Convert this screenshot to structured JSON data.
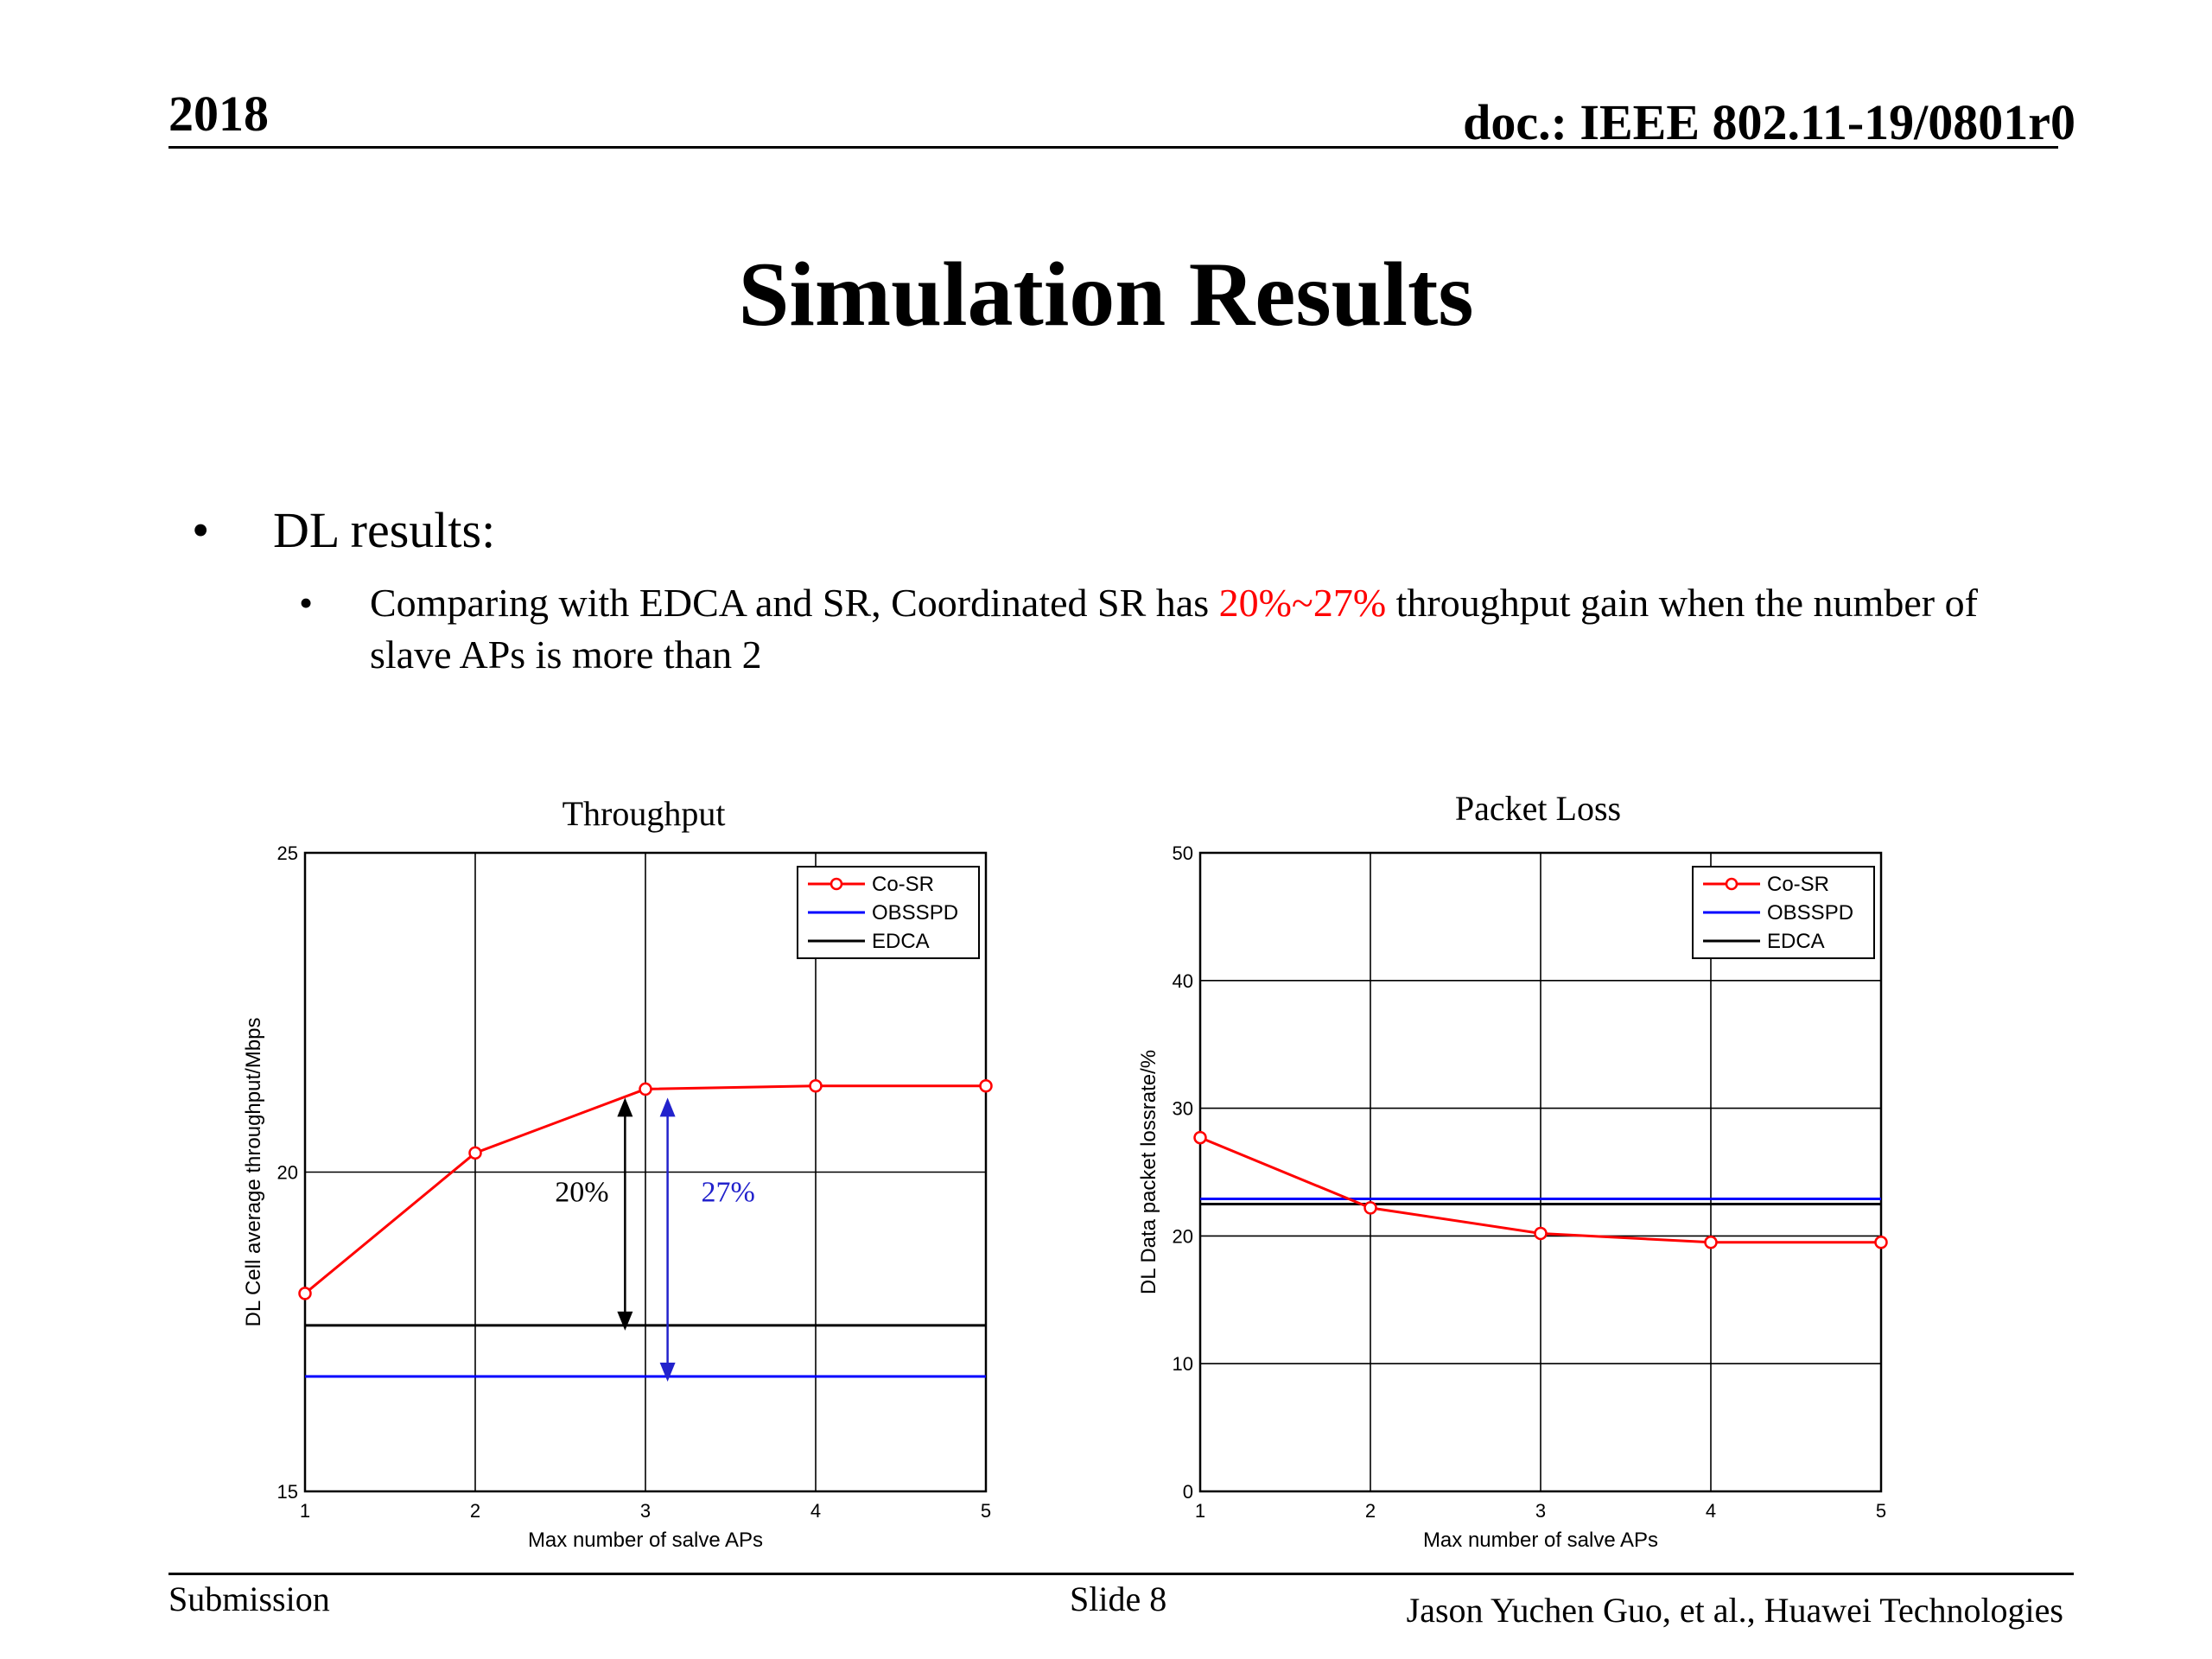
{
  "header": {
    "year": "2018",
    "doc_id": "doc.: IEEE 802.11-19/0801r0"
  },
  "slide_title": "Simulation Results",
  "bullets": {
    "level1_marker": "•",
    "level1_text": "DL results:",
    "level2_marker": "•",
    "level2_pre": "Comparing with EDCA and SR, Coordinated SR has ",
    "level2_highlight": "20%~27%",
    "level2_post": " throughput gain when the number of slave APs is more than 2",
    "highlight_color": "#ff0000"
  },
  "footer": {
    "left": "Submission",
    "center": "Slide 8",
    "right": "Jason Yuchen Guo, et al., Huawei Technologies"
  },
  "chart_data": [
    {
      "type": "line",
      "title": "Throughput",
      "xlabel": "Max number of salve APs",
      "ylabel": "DL Cell average throughput/Mbps",
      "xlim": [
        1,
        5
      ],
      "ylim": [
        15,
        25
      ],
      "x_ticks": [
        1,
        2,
        3,
        4,
        5
      ],
      "y_ticks": [
        15,
        20,
        25
      ],
      "grid": true,
      "legend_position": "top-right",
      "x": [
        1,
        2,
        3,
        4,
        5
      ],
      "series": [
        {
          "name": "Co-SR",
          "color": "#ff0000",
          "marker": "circle",
          "values": [
            18.1,
            20.3,
            21.3,
            21.35,
            21.35
          ]
        },
        {
          "name": "OBSSPD",
          "color": "#0000ff",
          "marker": "none",
          "values": [
            16.8,
            16.8,
            16.8,
            16.8,
            16.8
          ]
        },
        {
          "name": "EDCA",
          "color": "#000000",
          "marker": "none",
          "values": [
            17.6,
            17.6,
            17.6,
            17.6,
            17.6
          ]
        }
      ],
      "annotations": [
        {
          "text": "20%",
          "color": "#000000",
          "x": 2.88,
          "y_from": 17.6,
          "y_to": 21.3
        },
        {
          "text": "27%",
          "color": "#2222cc",
          "x": 3.13,
          "y_from": 16.8,
          "y_to": 21.3
        }
      ]
    },
    {
      "type": "line",
      "title": "Packet Loss",
      "xlabel": "Max number of salve APs",
      "ylabel": "DL Data packet lossrate/%",
      "xlim": [
        1,
        5
      ],
      "ylim": [
        0,
        50
      ],
      "x_ticks": [
        1,
        2,
        3,
        4,
        5
      ],
      "y_ticks": [
        0,
        10,
        20,
        30,
        40,
        50
      ],
      "grid": true,
      "legend_position": "top-right",
      "x": [
        1,
        2,
        3,
        4,
        5
      ],
      "series": [
        {
          "name": "Co-SR",
          "color": "#ff0000",
          "marker": "circle",
          "values": [
            27.7,
            22.2,
            20.2,
            19.5,
            19.5
          ]
        },
        {
          "name": "OBSSPD",
          "color": "#0000ff",
          "marker": "none",
          "values": [
            22.9,
            22.9,
            22.9,
            22.9,
            22.9
          ]
        },
        {
          "name": "EDCA",
          "color": "#000000",
          "marker": "none",
          "values": [
            22.5,
            22.5,
            22.5,
            22.5,
            22.5
          ]
        }
      ],
      "annotations": []
    }
  ]
}
